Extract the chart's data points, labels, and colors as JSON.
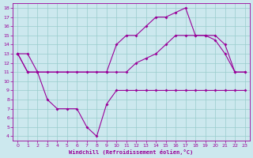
{
  "xlabel": "Windchill (Refroidissement éolien,°C)",
  "bg_color": "#cce8ee",
  "line_color": "#990099",
  "grid_color": "#99cccc",
  "xlim": [
    -0.5,
    23.5
  ],
  "ylim": [
    3.5,
    18.5
  ],
  "xticks": [
    0,
    1,
    2,
    3,
    4,
    5,
    6,
    7,
    8,
    9,
    10,
    11,
    12,
    13,
    14,
    15,
    16,
    17,
    18,
    19,
    20,
    21,
    22,
    23
  ],
  "yticks": [
    4,
    5,
    6,
    7,
    8,
    9,
    10,
    11,
    12,
    13,
    14,
    15,
    16,
    17,
    18
  ],
  "line_wavy_x": [
    0,
    1,
    2,
    3,
    4,
    5,
    6,
    7,
    8,
    9,
    10,
    11,
    12,
    13,
    14,
    15,
    16,
    17,
    18,
    19,
    20,
    21,
    22,
    23
  ],
  "line_wavy_y": [
    13,
    13,
    11,
    8,
    7,
    7,
    7,
    5,
    4,
    7.5,
    9,
    9,
    9,
    9,
    9,
    9,
    9,
    9,
    9,
    9,
    9,
    9,
    9,
    9
  ],
  "line_upper_x": [
    0,
    1,
    2,
    9,
    10,
    11,
    12,
    13,
    14,
    15,
    16,
    17,
    18,
    19,
    20,
    21,
    22,
    23
  ],
  "line_upper_y": [
    13,
    11,
    11,
    11,
    14,
    15,
    15,
    16,
    17,
    17,
    17.5,
    18,
    15,
    15,
    14.5,
    13,
    11,
    11
  ],
  "line_diag_x": [
    0,
    1,
    2,
    3,
    4,
    5,
    6,
    7,
    8,
    9,
    10,
    11,
    12,
    13,
    14,
    15,
    16,
    17,
    18,
    19,
    20,
    21,
    22,
    23
  ],
  "line_diag_y": [
    13,
    11,
    11,
    11,
    11,
    11,
    11,
    11,
    11,
    11,
    11,
    11,
    12,
    12.5,
    13,
    14,
    15,
    15,
    15,
    15,
    15,
    14,
    11,
    11
  ]
}
